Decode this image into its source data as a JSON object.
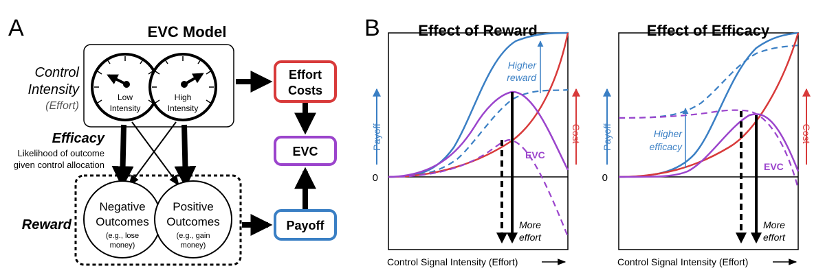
{
  "panel_a": {
    "letter": "A",
    "title": "EVC Model",
    "control_label": [
      "Control",
      "Intensity"
    ],
    "control_sub": "(Effort)",
    "dial_low": [
      "Low",
      "Intensity"
    ],
    "dial_high": [
      "High",
      "Intensity"
    ],
    "efficacy_label": "Efficacy",
    "efficacy_desc": [
      "Likelihood of outcome",
      "given control allocation"
    ],
    "reward_label": "Reward",
    "neg_outcome": [
      "Negative",
      "Outcomes",
      "(e.g., lose",
      "money)"
    ],
    "pos_outcome": [
      "Positive",
      "Outcomes",
      "(e.g., gain",
      "money)"
    ],
    "effort_costs": [
      "Effort",
      "Costs"
    ],
    "evc": "EVC",
    "payoff": "Payoff",
    "colors": {
      "cost": "#d83a3a",
      "evc": "#9b44cc",
      "payoff": "#3a7fc4"
    }
  },
  "panel_b": {
    "letter": "B",
    "xlabel": "Control Signal Intensity (Effort)",
    "payoff_axis": "Payoff",
    "cost_axis": "Cost",
    "zero": "0",
    "evc_label": "EVC",
    "more_effort": [
      "More",
      "effort"
    ],
    "reward_chart": {
      "title": "Effect of Reward",
      "annotation": [
        "Higher",
        "reward"
      ]
    },
    "efficacy_chart": {
      "title": "Effect of Efficacy",
      "annotation": [
        "Higher",
        "efficacy"
      ]
    }
  }
}
